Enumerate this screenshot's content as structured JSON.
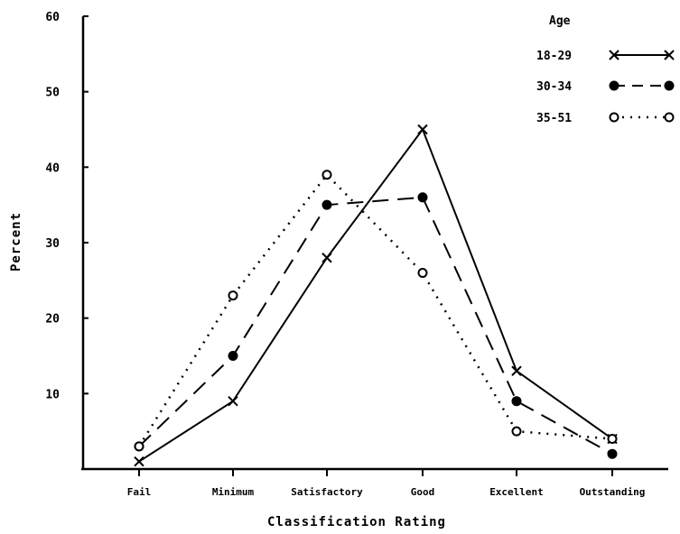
{
  "chart_data": {
    "type": "line",
    "xlabel": "Classification Rating",
    "ylabel": "Percent",
    "categories": [
      "Fail",
      "Minimum",
      "Satisfactory",
      "Good",
      "Excellent",
      "Outstanding"
    ],
    "ylim": [
      0,
      60
    ],
    "yticks": [
      "10",
      "20",
      "30",
      "40",
      "50",
      "60"
    ],
    "grid": false,
    "legend": {
      "title": "Age",
      "position": "top-right"
    },
    "series": [
      {
        "name": "18-29",
        "marker": "x",
        "line": "solid",
        "values": [
          1,
          9,
          28,
          45,
          13,
          4
        ]
      },
      {
        "name": "30-34",
        "marker": "filled-circle",
        "line": "dashed",
        "values": [
          3,
          15,
          35,
          36,
          9,
          2
        ]
      },
      {
        "name": "35-51",
        "marker": "open-circle",
        "line": "dotted",
        "values": [
          3,
          23,
          39,
          26,
          5,
          4
        ]
      }
    ]
  }
}
